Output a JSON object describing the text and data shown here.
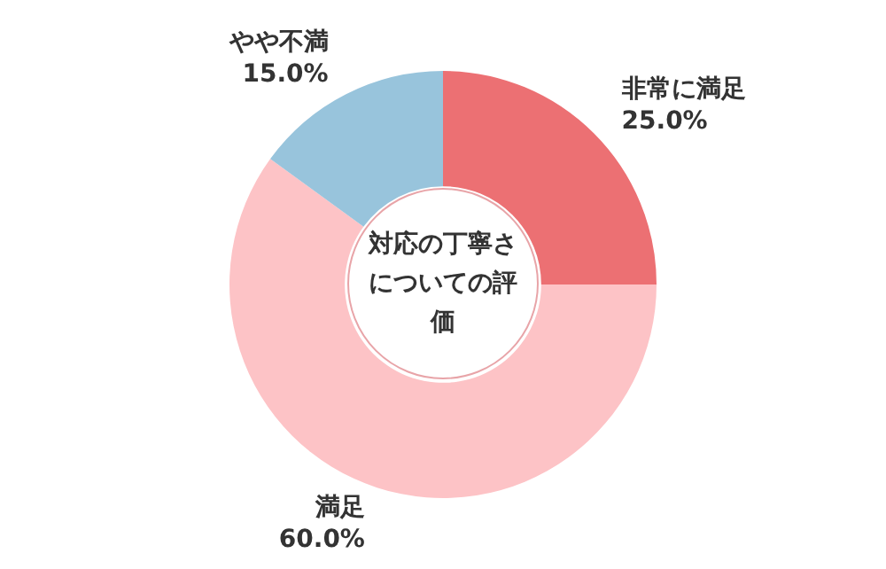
{
  "chart_data": {
    "type": "donut",
    "title": "対応の丁寧さについての評価",
    "categories": [
      "非常に満足",
      "満足",
      "やや不満"
    ],
    "values": [
      25.0,
      60.0,
      15.0
    ],
    "value_labels": [
      "25.0%",
      "60.0%",
      "15.0%"
    ],
    "colors": [
      "#ec7073",
      "#fdc3c6",
      "#98c4dc"
    ],
    "legend": false
  }
}
